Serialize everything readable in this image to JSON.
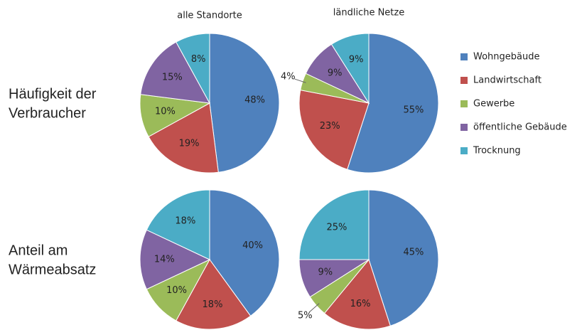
{
  "column_titles": [
    "alle Standorte",
    "ländliche Netze"
  ],
  "row_labels": [
    [
      "Häufigkeit der",
      "Verbraucher"
    ],
    [
      "Anteil am",
      "Wärmeabsatz"
    ]
  ],
  "legend": {
    "categories": [
      "Wohngebäude",
      "Landwirtschaft",
      "Gewerbe",
      "öffentliche Gebäude",
      "Trocknung"
    ],
    "colors": [
      "#4f81bd",
      "#c0504d",
      "#9bbb59",
      "#8064a2",
      "#4bacc6"
    ]
  },
  "chart_data": [
    {
      "type": "pie",
      "values": [
        48,
        19,
        10,
        15,
        8
      ],
      "value_labels": [
        "48%",
        "19%",
        "10%",
        "15%",
        "8%"
      ]
    },
    {
      "type": "pie",
      "values": [
        55,
        23,
        4,
        9,
        9
      ],
      "value_labels": [
        "55%",
        "23%",
        "4%",
        "9%",
        "9%"
      ]
    },
    {
      "type": "pie",
      "values": [
        40,
        18,
        10,
        14,
        18
      ],
      "value_labels": [
        "40%",
        "18%",
        "10%",
        "14%",
        "18%"
      ]
    },
    {
      "type": "pie",
      "values": [
        45,
        16,
        5,
        9,
        25
      ],
      "value_labels": [
        "45%",
        "16%",
        "5%",
        "9%",
        "25%"
      ]
    }
  ]
}
